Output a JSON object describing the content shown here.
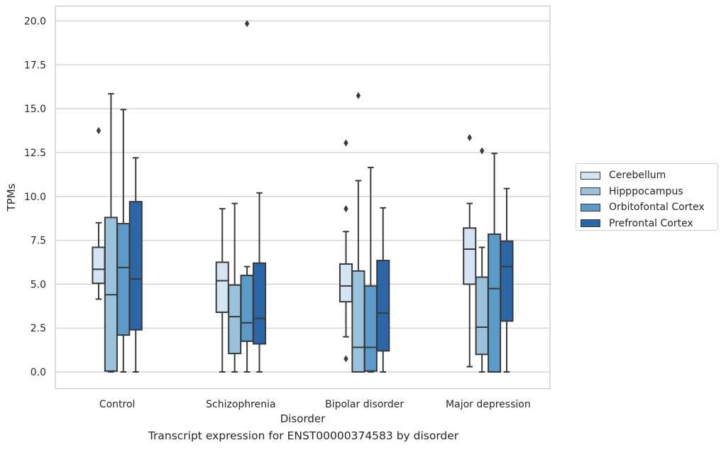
{
  "chart_data": {
    "type": "box",
    "title": "",
    "caption": "Transcript expression for ENST00000374583 by disorder",
    "xlabel": "Disorder",
    "ylabel": "TPMs",
    "ylim": [
      -0.95,
      20.85
    ],
    "yticks": [
      "0.0",
      "2.5",
      "5.0",
      "7.5",
      "10.0",
      "12.5",
      "15.0",
      "17.5",
      "20.0"
    ],
    "grid": "horizontal",
    "legend_position": "right",
    "categories": [
      "Control",
      "Schizophrenia",
      "Bipolar disorder",
      "Major depression"
    ],
    "series": [
      {
        "name": "Cerebellum",
        "color": "#d4e4f3",
        "boxes": [
          {
            "whislo": 4.15,
            "q1": 5.05,
            "med": 5.85,
            "q3": 7.1,
            "whishi": 8.5,
            "fliers": [
              13.75
            ]
          },
          {
            "whislo": 0.0,
            "q1": 3.4,
            "med": 5.2,
            "q3": 6.25,
            "whishi": 9.3,
            "fliers": []
          },
          {
            "whislo": 2.0,
            "q1": 4.0,
            "med": 4.9,
            "q3": 6.15,
            "whishi": 8.0,
            "fliers": [
              0.75,
              9.3,
              13.05
            ]
          },
          {
            "whislo": 0.3,
            "q1": 5.0,
            "med": 7.0,
            "q3": 8.2,
            "whishi": 9.6,
            "fliers": [
              13.35
            ]
          }
        ]
      },
      {
        "name": "Hipppocampus",
        "color": "#9ac2dc",
        "boxes": [
          {
            "whislo": 0.0,
            "q1": 0.05,
            "med": 4.4,
            "q3": 8.8,
            "whishi": 15.85,
            "fliers": []
          },
          {
            "whislo": 0.0,
            "q1": 1.05,
            "med": 3.15,
            "q3": 4.95,
            "whishi": 9.6,
            "fliers": []
          },
          {
            "whislo": 0.0,
            "q1": 0.0,
            "med": 1.4,
            "q3": 5.75,
            "whishi": 10.9,
            "fliers": [
              15.75
            ]
          },
          {
            "whislo": 0.0,
            "q1": 1.0,
            "med": 2.55,
            "q3": 5.4,
            "whishi": 7.1,
            "fliers": [
              12.6
            ]
          }
        ]
      },
      {
        "name": "Orbitofontal Cortex",
        "color": "#5a9bc9",
        "boxes": [
          {
            "whislo": 0.0,
            "q1": 2.1,
            "med": 5.95,
            "q3": 8.45,
            "whishi": 14.95,
            "fliers": []
          },
          {
            "whislo": 0.0,
            "q1": 1.75,
            "med": 2.8,
            "q3": 5.5,
            "whishi": 6.0,
            "fliers": [
              19.85
            ]
          },
          {
            "whislo": 0.0,
            "q1": 0.05,
            "med": 1.4,
            "q3": 4.9,
            "whishi": 11.65,
            "fliers": []
          },
          {
            "whislo": 0.0,
            "q1": 0.0,
            "med": 4.75,
            "q3": 7.85,
            "whishi": 12.45,
            "fliers": []
          }
        ]
      },
      {
        "name": "Prefrontal Cortex",
        "color": "#2b67a6",
        "boxes": [
          {
            "whislo": 0.0,
            "q1": 2.4,
            "med": 5.3,
            "q3": 9.7,
            "whishi": 12.2,
            "fliers": []
          },
          {
            "whislo": 0.0,
            "q1": 1.6,
            "med": 3.05,
            "q3": 6.2,
            "whishi": 10.2,
            "fliers": []
          },
          {
            "whislo": 0.0,
            "q1": 1.2,
            "med": 3.35,
            "q3": 6.35,
            "whishi": 9.35,
            "fliers": []
          },
          {
            "whislo": 0.0,
            "q1": 2.9,
            "med": 6.0,
            "q3": 7.45,
            "whishi": 10.45,
            "fliers": []
          }
        ]
      }
    ]
  }
}
